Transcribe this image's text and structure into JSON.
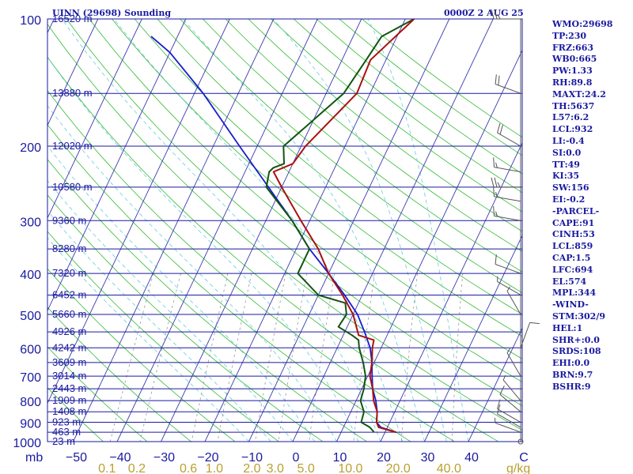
{
  "header": {
    "station": "UINN (29698) Sounding",
    "time": "0000Z  2 AUG 25"
  },
  "indices": [
    "WMO:29698",
    "TP:230",
    "FRZ:663",
    "WB0:665",
    "PW:1.33",
    "RH:89.8",
    "MAXT:24.2",
    "TH:5637",
    "L57:6.2",
    "LCL:932",
    "LI:-0.4",
    "SI:0.0",
    "TT:49",
    "KI:35",
    "SW:156",
    "EI:-0.2",
    "-PARCEL-",
    "CAPE:91",
    "CINH:53",
    "LCL:859",
    "CAP:1.5",
    "LFC:694",
    "EL:574",
    "MPL:344",
    "-WIND-",
    "STM:302/9",
    "HEL:1",
    "SHR+:0.0",
    "SRDS:108",
    "EHI:0.0",
    "BRN:9.7",
    "BSHR:9"
  ],
  "colors": {
    "frame": "#1a1aa0",
    "isobar": "#1a1aa0",
    "isotherm": "#3a3ab0",
    "dry_adiabat": "#33bb33",
    "moist_adiabat": "#66ccdd",
    "mixing_ratio": "#999999",
    "temperature": "#aa1111",
    "dewpoint": "#115511",
    "parcel": "#1a1ad0",
    "wind": "#555555",
    "text": "#1a1aa0",
    "mixlabel": "#b8a030"
  },
  "chart_data": {
    "type": "skew-t",
    "y_axis_unit": "mb",
    "x_axis_unit": "°C",
    "mixing_ratio_unit": "g/kg",
    "pressure_levels": [
      100,
      200,
      300,
      400,
      500,
      600,
      700,
      800,
      900,
      1000
    ],
    "temperature_ticks": [
      -50,
      -40,
      -30,
      -20,
      -10,
      0,
      10,
      20,
      30,
      40
    ],
    "pressure_range": [
      100,
      1000
    ],
    "heights": [
      {
        "p": 100,
        "label": "16520 m"
      },
      {
        "p": 150,
        "label": "13880 m"
      },
      {
        "p": 200,
        "label": "12020 m"
      },
      {
        "p": 250,
        "label": "10580 m"
      },
      {
        "p": 300,
        "label": "9360 m"
      },
      {
        "p": 350,
        "label": "8280 m"
      },
      {
        "p": 400,
        "label": "7320 m"
      },
      {
        "p": 450,
        "label": "6452 m"
      },
      {
        "p": 500,
        "label": "5660 m"
      },
      {
        "p": 550,
        "label": "4926 m"
      },
      {
        "p": 600,
        "label": "4242 m"
      },
      {
        "p": 650,
        "label": "3609 m"
      },
      {
        "p": 700,
        "label": "3014 m"
      },
      {
        "p": 750,
        "label": "2443 m"
      },
      {
        "p": 800,
        "label": "1909 m"
      },
      {
        "p": 850,
        "label": "1408 m"
      },
      {
        "p": 900,
        "label": "923 m"
      },
      {
        "p": 950,
        "label": "463 m"
      },
      {
        "p": 1000,
        "label": "23 m"
      }
    ],
    "mixing_ratio_labels": [
      {
        "w": 0.1,
        "label": "0.1"
      },
      {
        "w": 0.2,
        "label": "0.2"
      },
      {
        "w": 0.6,
        "label": "0.6"
      },
      {
        "w": 1.0,
        "label": "1.0"
      },
      {
        "w": 2.0,
        "label": "2.0"
      },
      {
        "w": 3.0,
        "label": "3.0"
      },
      {
        "w": 5.0,
        "label": "5.0"
      },
      {
        "w": 10.0,
        "label": "10.0"
      },
      {
        "w": 20.0,
        "label": "20.0"
      },
      {
        "w": 40.0,
        "label": "40.0"
      }
    ],
    "series": [
      {
        "name": "temperature",
        "points": [
          [
            950,
            22.5
          ],
          [
            925,
            18.0
          ],
          [
            900,
            17.0
          ],
          [
            850,
            16.0
          ],
          [
            800,
            14.0
          ],
          [
            750,
            12.5
          ],
          [
            700,
            10.5
          ],
          [
            650,
            9.5
          ],
          [
            600,
            8.0
          ],
          [
            575,
            7.5
          ],
          [
            560,
            3.5
          ],
          [
            500,
            0.0
          ],
          [
            450,
            -4.5
          ],
          [
            400,
            -10.0
          ],
          [
            350,
            -15.0
          ],
          [
            300,
            -22.0
          ],
          [
            250,
            -30.0
          ],
          [
            230,
            -33.5
          ],
          [
            220,
            -30.0
          ],
          [
            200,
            -29.0
          ],
          [
            150,
            -23.0
          ],
          [
            125,
            -23.5
          ],
          [
            100,
            -18.0
          ]
        ]
      },
      {
        "name": "dewpoint",
        "points": [
          [
            950,
            17.5
          ],
          [
            925,
            16.0
          ],
          [
            900,
            13.5
          ],
          [
            850,
            13.0
          ],
          [
            800,
            11.0
          ],
          [
            750,
            10.5
          ],
          [
            700,
            9.5
          ],
          [
            650,
            7.5
          ],
          [
            600,
            5.0
          ],
          [
            575,
            4.0
          ],
          [
            560,
            2.0
          ],
          [
            535,
            -2.0
          ],
          [
            500,
            -1.5
          ],
          [
            470,
            -3.0
          ],
          [
            450,
            -10.0
          ],
          [
            400,
            -17.0
          ],
          [
            350,
            -17.0
          ],
          [
            300,
            -24.0
          ],
          [
            250,
            -33.5
          ],
          [
            230,
            -34.5
          ],
          [
            225,
            -34.0
          ],
          [
            220,
            -32.0
          ],
          [
            200,
            -34.0
          ],
          [
            150,
            -26.0
          ],
          [
            125,
            -24.5
          ],
          [
            110,
            -23.5
          ],
          [
            100,
            -18.0
          ]
        ]
      },
      {
        "name": "parcel",
        "points": [
          [
            950,
            22.5
          ],
          [
            925,
            18.5
          ],
          [
            900,
            17.0
          ],
          [
            850,
            16.0
          ],
          [
            800,
            14.5
          ],
          [
            750,
            12.5
          ],
          [
            700,
            11.0
          ],
          [
            650,
            9.5
          ],
          [
            600,
            7.5
          ],
          [
            550,
            4.5
          ],
          [
            500,
            1.0
          ],
          [
            450,
            -4.0
          ],
          [
            400,
            -10.0
          ],
          [
            350,
            -17.0
          ],
          [
            300,
            -24.0
          ],
          [
            250,
            -33.0
          ],
          [
            200,
            -44.0
          ],
          [
            150,
            -58.0
          ],
          [
            120,
            -70.0
          ],
          [
            110,
            -76.0
          ]
        ]
      }
    ],
    "wind_barbs": [
      {
        "p": 1000,
        "dir": 0,
        "spd": 0
      },
      {
        "p": 950,
        "dir": 290,
        "spd": 5
      },
      {
        "p": 925,
        "dir": 300,
        "spd": 10
      },
      {
        "p": 900,
        "dir": 300,
        "spd": 10
      },
      {
        "p": 850,
        "dir": 310,
        "spd": 10
      },
      {
        "p": 800,
        "dir": 320,
        "spd": 5
      },
      {
        "p": 700,
        "dir": 330,
        "spd": 5
      },
      {
        "p": 600,
        "dir": 20,
        "spd": 10
      },
      {
        "p": 500,
        "dir": 330,
        "spd": 5
      },
      {
        "p": 450,
        "dir": 300,
        "spd": 5
      },
      {
        "p": 400,
        "dir": 290,
        "spd": 10
      },
      {
        "p": 300,
        "dir": 280,
        "spd": 15
      },
      {
        "p": 270,
        "dir": 280,
        "spd": 15
      },
      {
        "p": 250,
        "dir": 270,
        "spd": 25
      },
      {
        "p": 230,
        "dir": 280,
        "spd": 15
      },
      {
        "p": 200,
        "dir": 300,
        "spd": 20
      },
      {
        "p": 150,
        "dir": 290,
        "spd": 20
      },
      {
        "p": 100,
        "dir": 270,
        "spd": 25
      }
    ]
  }
}
